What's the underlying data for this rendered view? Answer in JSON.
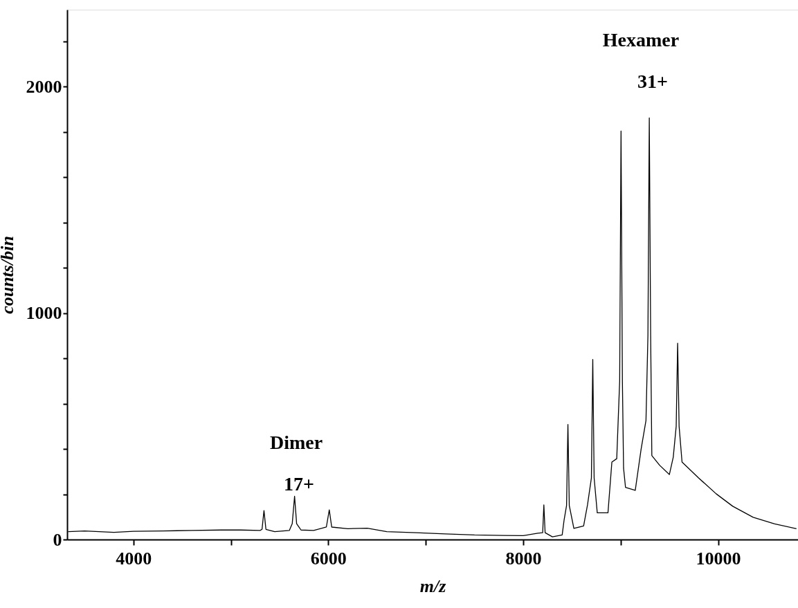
{
  "chart_data": {
    "type": "line",
    "xlabel": "m/z",
    "ylabel": "counts/bin",
    "xlim": [
      3320,
      10820
    ],
    "ylim": [
      0,
      2340
    ],
    "xticks": [
      4000,
      {
        "value": 5000,
        "label": null
      },
      6000,
      {
        "value": 7000,
        "label": null
      },
      8000,
      {
        "value": 9000,
        "label": null
      },
      10000
    ],
    "yticks": [
      0,
      {
        "value": 200,
        "label": null
      },
      {
        "value": 400,
        "label": null
      },
      {
        "value": 600,
        "label": null
      },
      {
        "value": 800,
        "label": null
      },
      1000,
      {
        "value": 1200,
        "label": null
      },
      {
        "value": 1400,
        "label": null
      },
      {
        "value": 1600,
        "label": null
      },
      {
        "value": 1800,
        "label": null
      },
      2000,
      {
        "value": 2200,
        "label": null
      }
    ],
    "grid": false,
    "marker": "none",
    "line_style": "solid",
    "annotations": [
      "Dimer",
      "17+",
      "Hexamer",
      "31+"
    ],
    "series": [
      {
        "color": "#000000",
        "x": [
          3330,
          3500,
          3800,
          4000,
          4300,
          4600,
          4900,
          5100,
          5300,
          5320,
          5340,
          5360,
          5450,
          5600,
          5630,
          5654,
          5675,
          5720,
          5850,
          5980,
          6010,
          6035,
          6200,
          6400,
          6600,
          6900,
          7200,
          7500,
          7800,
          8000,
          8150,
          8200,
          8212,
          8225,
          8300,
          8400,
          8420,
          8445,
          8459,
          8473,
          8520,
          8620,
          8660,
          8700,
          8714,
          8728,
          8760,
          8870,
          8910,
          8960,
          8990,
          9004,
          9018,
          9030,
          9050,
          9150,
          9210,
          9260,
          9280,
          9294,
          9308,
          9320,
          9400,
          9500,
          9540,
          9570,
          9585,
          9600,
          9630,
          9800,
          9980,
          10150,
          10360,
          10580,
          10804
        ],
        "values": [
          35,
          38,
          32,
          36,
          38,
          40,
          42,
          42,
          40,
          45,
          128,
          45,
          35,
          40,
          70,
          191,
          70,
          42,
          40,
          55,
          131,
          55,
          48,
          50,
          35,
          30,
          25,
          20,
          18,
          17,
          28,
          30,
          153,
          30,
          12,
          20,
          87,
          150,
          508,
          150,
          49,
          60,
          153,
          272,
          795,
          272,
          118,
          118,
          342,
          357,
          700,
          1804,
          700,
          315,
          230,
          217,
          399,
          526,
          900,
          1862,
          900,
          371,
          328,
          287,
          364,
          500,
          867,
          500,
          342,
          272,
          202,
          147,
          98,
          69,
          48
        ]
      }
    ]
  }
}
